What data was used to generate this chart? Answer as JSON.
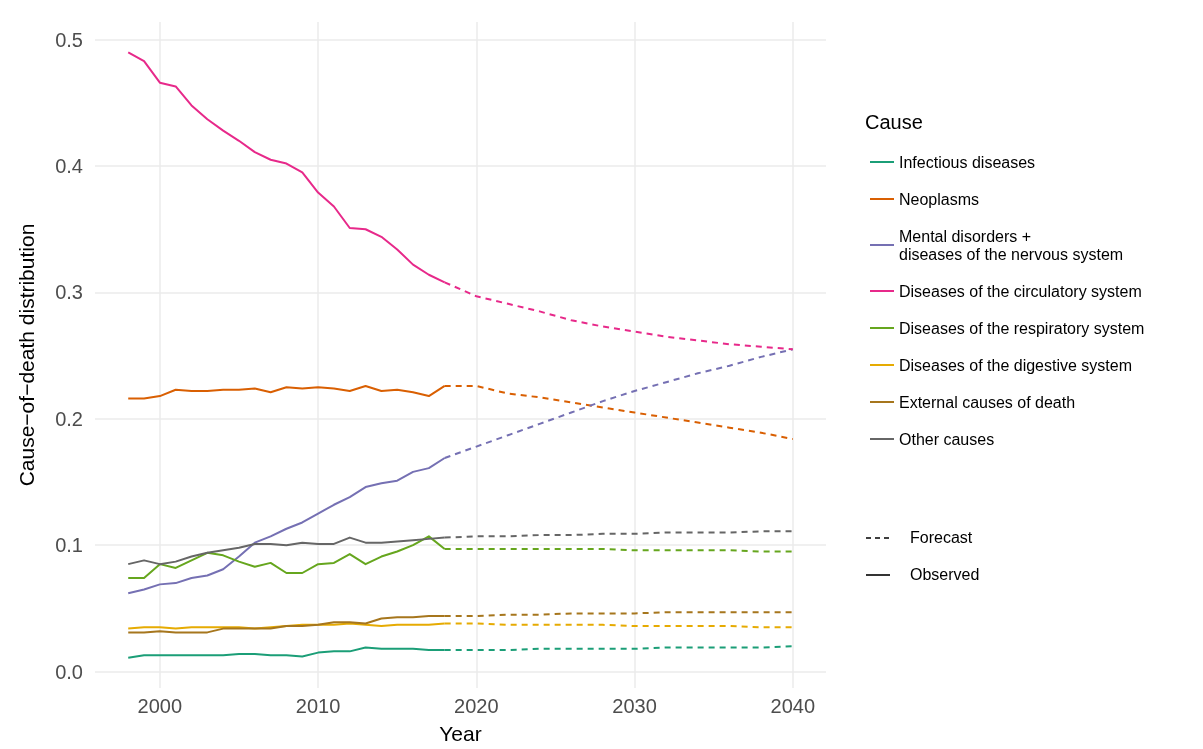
{
  "chart_data": {
    "type": "line",
    "xlabel": "Year",
    "ylabel": "Cause−of−death distribution",
    "legend_title": "Cause",
    "legend": "right",
    "grid": true,
    "marker": "none",
    "xlim": [
      1995.9,
      2042.1
    ],
    "xticks": [
      2000,
      2010,
      2020,
      2030,
      2040
    ],
    "ylim": [
      -0.013,
      0.514
    ],
    "yticks": [
      {
        "value": 0,
        "label": "0.0"
      },
      0.1,
      0.2,
      0.3,
      0.4,
      0.5
    ],
    "annotations": [
      "Forecast",
      "Observed"
    ],
    "series": [
      {
        "name": "Infectious diseases",
        "color": "#1b9e77",
        "line_style": "solid",
        "x": [
          1998,
          1999,
          2000,
          2001,
          2002,
          2003,
          2004,
          2005,
          2006,
          2007,
          2008,
          2009,
          2010,
          2011,
          2012,
          2013,
          2014,
          2015,
          2016,
          2017,
          2018
        ],
        "values": [
          0.011,
          0.013,
          0.013,
          0.013,
          0.013,
          0.013,
          0.013,
          0.014,
          0.014,
          0.013,
          0.013,
          0.012,
          0.015,
          0.016,
          0.016,
          0.019,
          0.018,
          0.018,
          0.018,
          0.017,
          0.017
        ]
      },
      {
        "name": "Neoplasms",
        "color": "#d95f02",
        "line_style": "solid",
        "x": [
          1998,
          1999,
          2000,
          2001,
          2002,
          2003,
          2004,
          2005,
          2006,
          2007,
          2008,
          2009,
          2010,
          2011,
          2012,
          2013,
          2014,
          2015,
          2016,
          2017,
          2018
        ],
        "values": [
          0.216,
          0.216,
          0.218,
          0.223,
          0.222,
          0.222,
          0.223,
          0.223,
          0.224,
          0.221,
          0.225,
          0.224,
          0.225,
          0.224,
          0.222,
          0.226,
          0.222,
          0.223,
          0.221,
          0.218,
          0.226
        ]
      },
      {
        "name": "Mental disorders +\ndiseases of the nervous system",
        "color": "#7570b3",
        "line_style": "solid",
        "x": [
          1998,
          1999,
          2000,
          2001,
          2002,
          2003,
          2004,
          2005,
          2006,
          2007,
          2008,
          2009,
          2010,
          2011,
          2012,
          2013,
          2014,
          2015,
          2016,
          2017,
          2018
        ],
        "values": [
          0.062,
          0.065,
          0.069,
          0.07,
          0.074,
          0.076,
          0.081,
          0.091,
          0.102,
          0.107,
          0.113,
          0.118,
          0.125,
          0.132,
          0.138,
          0.146,
          0.149,
          0.151,
          0.158,
          0.161,
          0.169
        ]
      },
      {
        "name": "Diseases of the circulatory system",
        "color": "#e7298a",
        "line_style": "solid",
        "x": [
          1998,
          1999,
          2000,
          2001,
          2002,
          2003,
          2004,
          2005,
          2006,
          2007,
          2008,
          2009,
          2010,
          2011,
          2012,
          2013,
          2014,
          2015,
          2016,
          2017,
          2018
        ],
        "values": [
          0.49,
          0.483,
          0.466,
          0.463,
          0.448,
          0.437,
          0.428,
          0.42,
          0.411,
          0.405,
          0.402,
          0.395,
          0.379,
          0.368,
          0.351,
          0.35,
          0.344,
          0.334,
          0.322,
          0.314,
          0.308
        ]
      },
      {
        "name": "Diseases of the respiratory system",
        "color": "#66a61e",
        "line_style": "solid",
        "x": [
          1998,
          1999,
          2000,
          2001,
          2002,
          2003,
          2004,
          2005,
          2006,
          2007,
          2008,
          2009,
          2010,
          2011,
          2012,
          2013,
          2014,
          2015,
          2016,
          2017,
          2018
        ],
        "values": [
          0.074,
          0.074,
          0.085,
          0.082,
          0.088,
          0.094,
          0.092,
          0.087,
          0.083,
          0.086,
          0.078,
          0.078,
          0.085,
          0.086,
          0.093,
          0.085,
          0.091,
          0.095,
          0.1,
          0.107,
          0.097
        ]
      },
      {
        "name": "Diseases of the digestive system",
        "color": "#e6ab02",
        "line_style": "solid",
        "x": [
          1998,
          1999,
          2000,
          2001,
          2002,
          2003,
          2004,
          2005,
          2006,
          2007,
          2008,
          2009,
          2010,
          2011,
          2012,
          2013,
          2014,
          2015,
          2016,
          2017,
          2018
        ],
        "values": [
          0.034,
          0.035,
          0.035,
          0.034,
          0.035,
          0.035,
          0.035,
          0.035,
          0.034,
          0.035,
          0.036,
          0.037,
          0.037,
          0.037,
          0.038,
          0.037,
          0.036,
          0.037,
          0.037,
          0.037,
          0.038
        ]
      },
      {
        "name": "External causes of death",
        "color": "#a6761d",
        "line_style": "solid",
        "x": [
          1998,
          1999,
          2000,
          2001,
          2002,
          2003,
          2004,
          2005,
          2006,
          2007,
          2008,
          2009,
          2010,
          2011,
          2012,
          2013,
          2014,
          2015,
          2016,
          2017,
          2018
        ],
        "values": [
          0.031,
          0.031,
          0.032,
          0.031,
          0.031,
          0.031,
          0.034,
          0.034,
          0.034,
          0.034,
          0.036,
          0.036,
          0.037,
          0.039,
          0.039,
          0.038,
          0.042,
          0.043,
          0.043,
          0.044,
          0.044
        ]
      },
      {
        "name": "Other causes",
        "color": "#666666",
        "line_style": "solid",
        "x": [
          1998,
          1999,
          2000,
          2001,
          2002,
          2003,
          2004,
          2005,
          2006,
          2007,
          2008,
          2009,
          2010,
          2011,
          2012,
          2013,
          2014,
          2015,
          2016,
          2017,
          2018
        ],
        "values": [
          0.085,
          0.088,
          0.085,
          0.087,
          0.091,
          0.094,
          0.096,
          0.098,
          0.101,
          0.101,
          0.1,
          0.102,
          0.101,
          0.101,
          0.106,
          0.102,
          0.102,
          0.103,
          0.104,
          0.105,
          0.106
        ]
      },
      {
        "color": "#1b9e77",
        "line_style": "dashed",
        "x": [
          2018,
          2020,
          2022,
          2024,
          2026,
          2028,
          2030,
          2032,
          2034,
          2036,
          2038,
          2040
        ],
        "values": [
          0.017,
          0.017,
          0.017,
          0.018,
          0.018,
          0.018,
          0.018,
          0.019,
          0.019,
          0.019,
          0.019,
          0.02
        ]
      },
      {
        "color": "#d95f02",
        "line_style": "dashed",
        "x": [
          2018,
          2020,
          2022,
          2024,
          2026,
          2028,
          2030,
          2032,
          2034,
          2036,
          2038,
          2040
        ],
        "values": [
          0.226,
          0.226,
          0.22,
          0.217,
          0.213,
          0.209,
          0.205,
          0.201,
          0.197,
          0.193,
          0.189,
          0.184
        ]
      },
      {
        "color": "#7570b3",
        "line_style": "dashed",
        "x": [
          2018,
          2020,
          2022,
          2024,
          2026,
          2028,
          2030,
          2032,
          2034,
          2036,
          2038,
          2040
        ],
        "values": [
          0.169,
          0.178,
          0.187,
          0.196,
          0.205,
          0.214,
          0.222,
          0.229,
          0.236,
          0.242,
          0.249,
          0.255
        ]
      },
      {
        "color": "#e7298a",
        "line_style": "dashed",
        "x": [
          2018,
          2020,
          2022,
          2024,
          2026,
          2028,
          2030,
          2032,
          2034,
          2036,
          2038,
          2040
        ],
        "values": [
          0.308,
          0.297,
          0.291,
          0.285,
          0.278,
          0.273,
          0.269,
          0.265,
          0.262,
          0.259,
          0.257,
          0.255
        ]
      },
      {
        "color": "#66a61e",
        "line_style": "dashed",
        "x": [
          2018,
          2020,
          2022,
          2024,
          2026,
          2028,
          2030,
          2032,
          2034,
          2036,
          2038,
          2040
        ],
        "values": [
          0.097,
          0.097,
          0.097,
          0.097,
          0.097,
          0.097,
          0.096,
          0.096,
          0.096,
          0.096,
          0.095,
          0.095
        ]
      },
      {
        "color": "#e6ab02",
        "line_style": "dashed",
        "x": [
          2018,
          2020,
          2022,
          2024,
          2026,
          2028,
          2030,
          2032,
          2034,
          2036,
          2038,
          2040
        ],
        "values": [
          0.038,
          0.038,
          0.037,
          0.037,
          0.037,
          0.037,
          0.036,
          0.036,
          0.036,
          0.036,
          0.035,
          0.035
        ]
      },
      {
        "color": "#a6761d",
        "line_style": "dashed",
        "x": [
          2018,
          2020,
          2022,
          2024,
          2026,
          2028,
          2030,
          2032,
          2034,
          2036,
          2038,
          2040
        ],
        "values": [
          0.044,
          0.044,
          0.045,
          0.045,
          0.046,
          0.046,
          0.046,
          0.047,
          0.047,
          0.047,
          0.047,
          0.047
        ]
      },
      {
        "color": "#666666",
        "line_style": "dashed",
        "x": [
          2018,
          2020,
          2022,
          2024,
          2026,
          2028,
          2030,
          2032,
          2034,
          2036,
          2038,
          2040
        ],
        "values": [
          0.106,
          0.107,
          0.107,
          0.108,
          0.108,
          0.109,
          0.109,
          0.11,
          0.11,
          0.11,
          0.111,
          0.111
        ]
      }
    ]
  }
}
